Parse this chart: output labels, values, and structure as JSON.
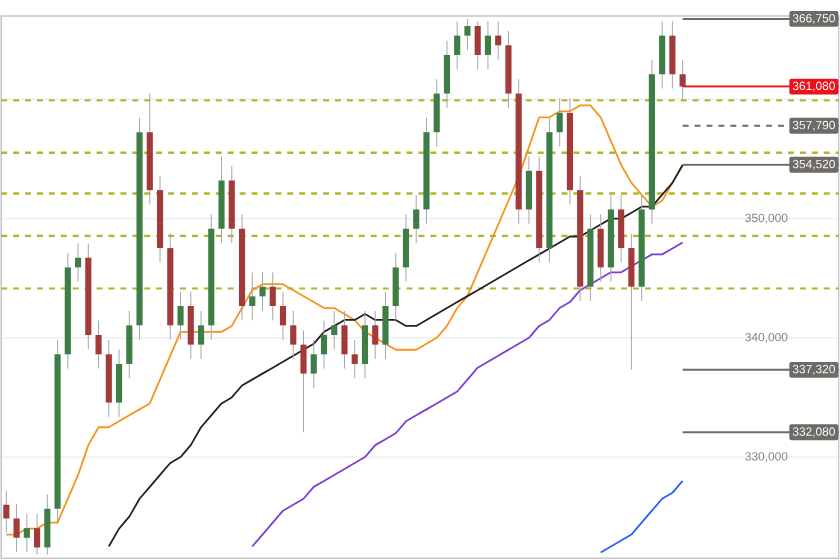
{
  "chart_data": {
    "type": "candlestick",
    "categories": [
      null,
      null,
      null,
      null,
      null,
      null,
      null,
      null,
      null,
      null,
      null,
      null,
      null,
      null,
      null,
      null,
      null,
      null,
      null,
      null,
      null,
      null,
      null,
      null,
      null,
      null,
      null,
      null,
      null,
      null,
      null,
      null,
      null,
      null,
      null,
      null,
      null,
      null,
      null,
      null,
      null,
      null,
      null,
      null,
      null,
      null,
      null,
      null,
      null,
      null,
      null,
      null,
      null,
      null,
      null,
      null,
      null,
      null,
      null,
      null,
      null,
      null,
      null,
      null,
      null,
      null,
      null
    ],
    "ohlc": [
      [
        326000,
        327200,
        323650,
        324850
      ],
      [
        324850,
        326050,
        322030,
        323230
      ],
      [
        323230,
        325240,
        322030,
        324040
      ],
      [
        324040,
        325240,
        321800,
        322420
      ],
      [
        322420,
        326860,
        321800,
        325660
      ],
      [
        325660,
        339820,
        324460,
        338620
      ],
      [
        338620,
        347110,
        337420,
        345910
      ],
      [
        345910,
        347920,
        344710,
        346720
      ],
      [
        346720,
        347920,
        339040,
        340240
      ],
      [
        340240,
        341440,
        337420,
        338620
      ],
      [
        338620,
        339820,
        333370,
        334570
      ],
      [
        334570,
        339010,
        333370,
        337810
      ],
      [
        337810,
        342250,
        336610,
        341050
      ],
      [
        341050,
        358450,
        339850,
        357250
      ],
      [
        357250,
        360490,
        351190,
        352390
      ],
      [
        352390,
        353590,
        346330,
        347530
      ],
      [
        347530,
        348730,
        339850,
        341050
      ],
      [
        341050,
        343870,
        339850,
        342670
      ],
      [
        342670,
        343870,
        338230,
        339430
      ],
      [
        339430,
        342250,
        338230,
        341050
      ],
      [
        341050,
        350350,
        339850,
        349150
      ],
      [
        349150,
        355200,
        347950,
        353200
      ],
      [
        353200,
        354400,
        347950,
        349150
      ],
      [
        349150,
        350350,
        341470,
        342670
      ],
      [
        342670,
        345480,
        341470,
        343480
      ],
      [
        343480,
        345490,
        342280,
        344290
      ],
      [
        344290,
        345490,
        341470,
        342670
      ],
      [
        342670,
        343870,
        339850,
        341050
      ],
      [
        341050,
        342250,
        338230,
        339430
      ],
      [
        339430,
        340630,
        332080,
        337000
      ],
      [
        337000,
        339820,
        335800,
        338620
      ],
      [
        338620,
        341440,
        337420,
        340240
      ],
      [
        340240,
        342250,
        339040,
        341050
      ],
      [
        341050,
        342250,
        337420,
        338620
      ],
      [
        338620,
        339820,
        336610,
        337810
      ],
      [
        337810,
        342250,
        336610,
        341050
      ],
      [
        341050,
        342250,
        338230,
        339430
      ],
      [
        339430,
        343870,
        338230,
        342670
      ],
      [
        342670,
        347110,
        341470,
        345910
      ],
      [
        345910,
        350350,
        344710,
        349150
      ],
      [
        349150,
        351970,
        347950,
        350770
      ],
      [
        350770,
        358450,
        349570,
        357250
      ],
      [
        357250,
        361690,
        356050,
        360490
      ],
      [
        360490,
        364930,
        359290,
        363730
      ],
      [
        363730,
        366550,
        362530,
        365350
      ],
      [
        365350,
        366750,
        364150,
        366160
      ],
      [
        366160,
        366550,
        362530,
        363730
      ],
      [
        363730,
        366550,
        362530,
        365350
      ],
      [
        365350,
        366550,
        363340,
        364540
      ],
      [
        364540,
        365740,
        359290,
        360490
      ],
      [
        360490,
        361690,
        349570,
        350770
      ],
      [
        350770,
        355210,
        349570,
        354010
      ],
      [
        354010,
        355210,
        346330,
        347530
      ],
      [
        347530,
        358450,
        346330,
        357250
      ],
      [
        357250,
        360070,
        356050,
        358870
      ],
      [
        358870,
        360070,
        351190,
        352390
      ],
      [
        352390,
        353590,
        343090,
        344290
      ],
      [
        344290,
        350350,
        343090,
        349150
      ],
      [
        349150,
        350350,
        344710,
        345910
      ],
      [
        345910,
        351970,
        344710,
        350770
      ],
      [
        350770,
        351970,
        346330,
        347530
      ],
      [
        347530,
        348730,
        337320,
        344290
      ],
      [
        344290,
        351970,
        343090,
        350770
      ],
      [
        350770,
        363310,
        349570,
        362110
      ],
      [
        362110,
        366550,
        360910,
        365350
      ],
      [
        365350,
        366550,
        360910,
        362110
      ],
      [
        362110,
        363310,
        359880,
        361080
      ]
    ],
    "colors": [
      "#a23a3a",
      "#a23a3a",
      "#3e7d46",
      "#a23a3a",
      "#3e7d46",
      "#3e7d46",
      "#3e7d46",
      "#3e7d46",
      "#a23a3a",
      "#a23a3a",
      "#a23a3a",
      "#3e7d46",
      "#3e7d46",
      "#3e7d46",
      "#a23a3a",
      "#a23a3a",
      "#a23a3a",
      "#3e7d46",
      "#a23a3a",
      "#3e7d46",
      "#3e7d46",
      "#3e7d46",
      "#a23a3a",
      "#a23a3a",
      "#3e7d46",
      "#3e7d46",
      "#a23a3a",
      "#a23a3a",
      "#a23a3a",
      "#a23a3a",
      "#3e7d46",
      "#3e7d46",
      "#3e7d46",
      "#a23a3a",
      "#a23a3a",
      "#3e7d46",
      "#a23a3a",
      "#3e7d46",
      "#3e7d46",
      "#3e7d46",
      "#3e7d46",
      "#3e7d46",
      "#3e7d46",
      "#3e7d46",
      "#3e7d46",
      "#3e7d46",
      "#a23a3a",
      "#3e7d46",
      "#a23a3a",
      "#a23a3a",
      "#a23a3a",
      "#3e7d46",
      "#a23a3a",
      "#3e7d46",
      "#3e7d46",
      "#a23a3a",
      "#a23a3a",
      "#3e7d46",
      "#a23a3a",
      "#3e7d46",
      "#a23a3a",
      "#a23a3a",
      "#3e7d46",
      "#3e7d46",
      "#3e7d46",
      "#a23a3a",
      "#a23a3a"
    ],
    "series": [
      {
        "type": "line",
        "color": "#f7931e",
        "values": [
          323500,
          323500,
          324000,
          324000,
          324500,
          324500,
          326500,
          328500,
          331000,
          332500,
          332500,
          333000,
          333500,
          334000,
          334500,
          336500,
          338500,
          340500,
          340500,
          340500,
          340500,
          340500,
          341000,
          342500,
          344000,
          344500,
          344500,
          344500,
          344000,
          343500,
          343000,
          342500,
          342500,
          342000,
          341500,
          340500,
          340000,
          339500,
          339000,
          339000,
          339000,
          339500,
          340000,
          341000,
          342500,
          343500,
          345500,
          347500,
          349500,
          351500,
          353500,
          356000,
          358500,
          358500,
          359000,
          359000,
          359500,
          359500,
          358500,
          356500,
          354500,
          353000,
          352000,
          351000,
          351500,
          353000,
          354500
        ]
      },
      {
        "type": "line",
        "color": "#222222",
        "values": [
          null,
          null,
          null,
          null,
          null,
          null,
          null,
          null,
          null,
          null,
          322500,
          324000,
          325000,
          326500,
          327500,
          328500,
          329500,
          330000,
          331000,
          332500,
          333500,
          334500,
          335000,
          336000,
          336500,
          337000,
          337500,
          338000,
          338500,
          339000,
          339500,
          340500,
          341000,
          341500,
          341500,
          342000,
          341500,
          341500,
          341500,
          341000,
          341000,
          341500,
          342000,
          342500,
          343000,
          343500,
          344000,
          344500,
          345000,
          345500,
          346000,
          346500,
          347000,
          347500,
          348000,
          348500,
          348500,
          349000,
          349500,
          350000,
          350000,
          350500,
          351000,
          351000,
          352000,
          353000,
          354500
        ]
      },
      {
        "type": "line",
        "color": "#7b3fd4",
        "values": [
          null,
          null,
          null,
          null,
          null,
          null,
          null,
          null,
          null,
          null,
          null,
          null,
          null,
          null,
          null,
          null,
          null,
          null,
          null,
          null,
          null,
          null,
          null,
          null,
          322500,
          323500,
          324500,
          325500,
          326000,
          326500,
          327500,
          328000,
          328500,
          329000,
          329500,
          330000,
          331000,
          331500,
          332000,
          333000,
          333500,
          334000,
          334500,
          335000,
          335500,
          336500,
          337500,
          338000,
          338500,
          339000,
          339500,
          340000,
          341000,
          341500,
          342500,
          343000,
          344000,
          344500,
          345000,
          345500,
          345500,
          346000,
          346500,
          347000,
          347000,
          347500,
          348000
        ]
      },
      {
        "type": "line",
        "color": "#2e5bff",
        "values": [
          null,
          null,
          null,
          null,
          null,
          null,
          null,
          null,
          null,
          null,
          null,
          null,
          null,
          null,
          null,
          null,
          null,
          null,
          null,
          null,
          null,
          null,
          null,
          null,
          null,
          null,
          null,
          null,
          null,
          null,
          null,
          null,
          null,
          null,
          null,
          null,
          null,
          null,
          null,
          null,
          null,
          null,
          null,
          null,
          null,
          null,
          null,
          null,
          null,
          null,
          null,
          null,
          null,
          null,
          null,
          null,
          null,
          null,
          322000,
          322500,
          323000,
          323500,
          324500,
          325500,
          326500,
          327000,
          328000
        ]
      }
    ],
    "ylim": [
      321500,
      367000
    ],
    "yticks": [
      {
        "value": 330000,
        "label": "330,000"
      },
      {
        "value": 340000,
        "label": "340,000"
      },
      {
        "value": 350000,
        "label": "350,000"
      },
      {
        "value": 360000,
        "label": null
      }
    ],
    "grid": "y",
    "ref_lines": [
      {
        "axis": "y",
        "value": 359920,
        "color": "#b5b52a",
        "line_style": "dashed"
      },
      {
        "axis": "y",
        "value": 355530,
        "color": "#b5b52a",
        "line_style": "dashed"
      },
      {
        "axis": "y",
        "value": 352110,
        "color": "#b5b52a",
        "line_style": "dashed"
      },
      {
        "axis": "y",
        "value": 348540,
        "color": "#b5b52a",
        "line_style": "dashed"
      },
      {
        "axis": "y",
        "value": 344150,
        "color": "#b5b52a",
        "line_style": "dashed"
      },
      {
        "axis": "y",
        "value": 366750,
        "label": "366,750",
        "color": "#6e6a66",
        "line_style": "solid"
      },
      {
        "axis": "y",
        "value": 361080,
        "label": "361,080",
        "color": "#e8141a",
        "line_style": "solid"
      },
      {
        "axis": "y",
        "value": 357790,
        "label": "357,790",
        "color": "#6e6a66",
        "line_style": "dashed"
      },
      {
        "axis": "y",
        "value": 354520,
        "label": "354,520",
        "color": "#6e6a66",
        "line_style": "solid"
      },
      {
        "axis": "y",
        "value": 337320,
        "label": "337,320",
        "color": "#6e6a66",
        "line_style": "solid"
      },
      {
        "axis": "y",
        "value": 332080,
        "label": "332,080",
        "color": "#6e6a66",
        "line_style": "solid"
      }
    ]
  }
}
